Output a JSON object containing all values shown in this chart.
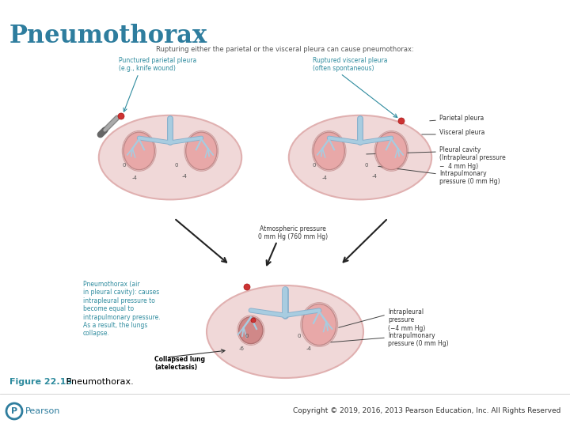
{
  "title": "Pneumothorax",
  "title_color": "#2e7d9e",
  "title_fontsize": 22,
  "background_color": "#ffffff",
  "figure_caption_bold": "Figure 22.15",
  "figure_caption_text": " Pneumothorax.",
  "figure_caption_color": "#2e8b9e",
  "figure_caption_text_color": "#000000",
  "copyright_text": "Copyright © 2019, 2016, 2013 Pearson Education, Inc. All Rights Reserved",
  "copyright_color": "#333333",
  "top_subtitle": "Rupturing either the parietal or the visceral pleura can cause pneumothorax:",
  "top_subtitle_color": "#555555",
  "label_left_top": "Punctured parietal pleura\n(e.g., knife wound)",
  "label_right_top": "Ruptured visceral pleura\n(often spontaneous)",
  "label_parietal": "Parietal pleura",
  "label_visceral": "Visceral pleura",
  "label_pleural_cavity": "Pleural cavity\n(Intrapleural pressure\n−  4 mm Hg)",
  "label_intrapulmonary": "Intrapulmonary\npressure (0 mm Hg)",
  "label_atmospheric": "Atmospheric pressure\n0 mm Hg (760 mm Hg)",
  "label_pneumothorax": "Pneumothorax (air\nin pleural cavity): causes\nintrapleural pressure to\nbecome equal to\nintrapulmonary pressure.\nAs a result, the lungs\ncollapse.",
  "label_collapsed": "Collapsed lung\n(atelectasis)",
  "label_intrapleural_bottom": "Intrapleural\npressure\n(−4 mm Hg)",
  "label_intrapulmonary_bottom": "Intrapulmonary\npressure (0 mm Hg)",
  "label_color_teal": "#2e8b9e",
  "label_color_dark": "#333333",
  "lung_pink": "#e8a8a8",
  "lung_dark_pink": "#d08888",
  "pleura_outer": "#e0b0b0",
  "pleura_bg": "#f0d8d8",
  "airway_color": "#a8cce0",
  "airway_outline": "#88b0cc",
  "pearson_color": "#2e7d9e",
  "wound_color": "#cc3333"
}
